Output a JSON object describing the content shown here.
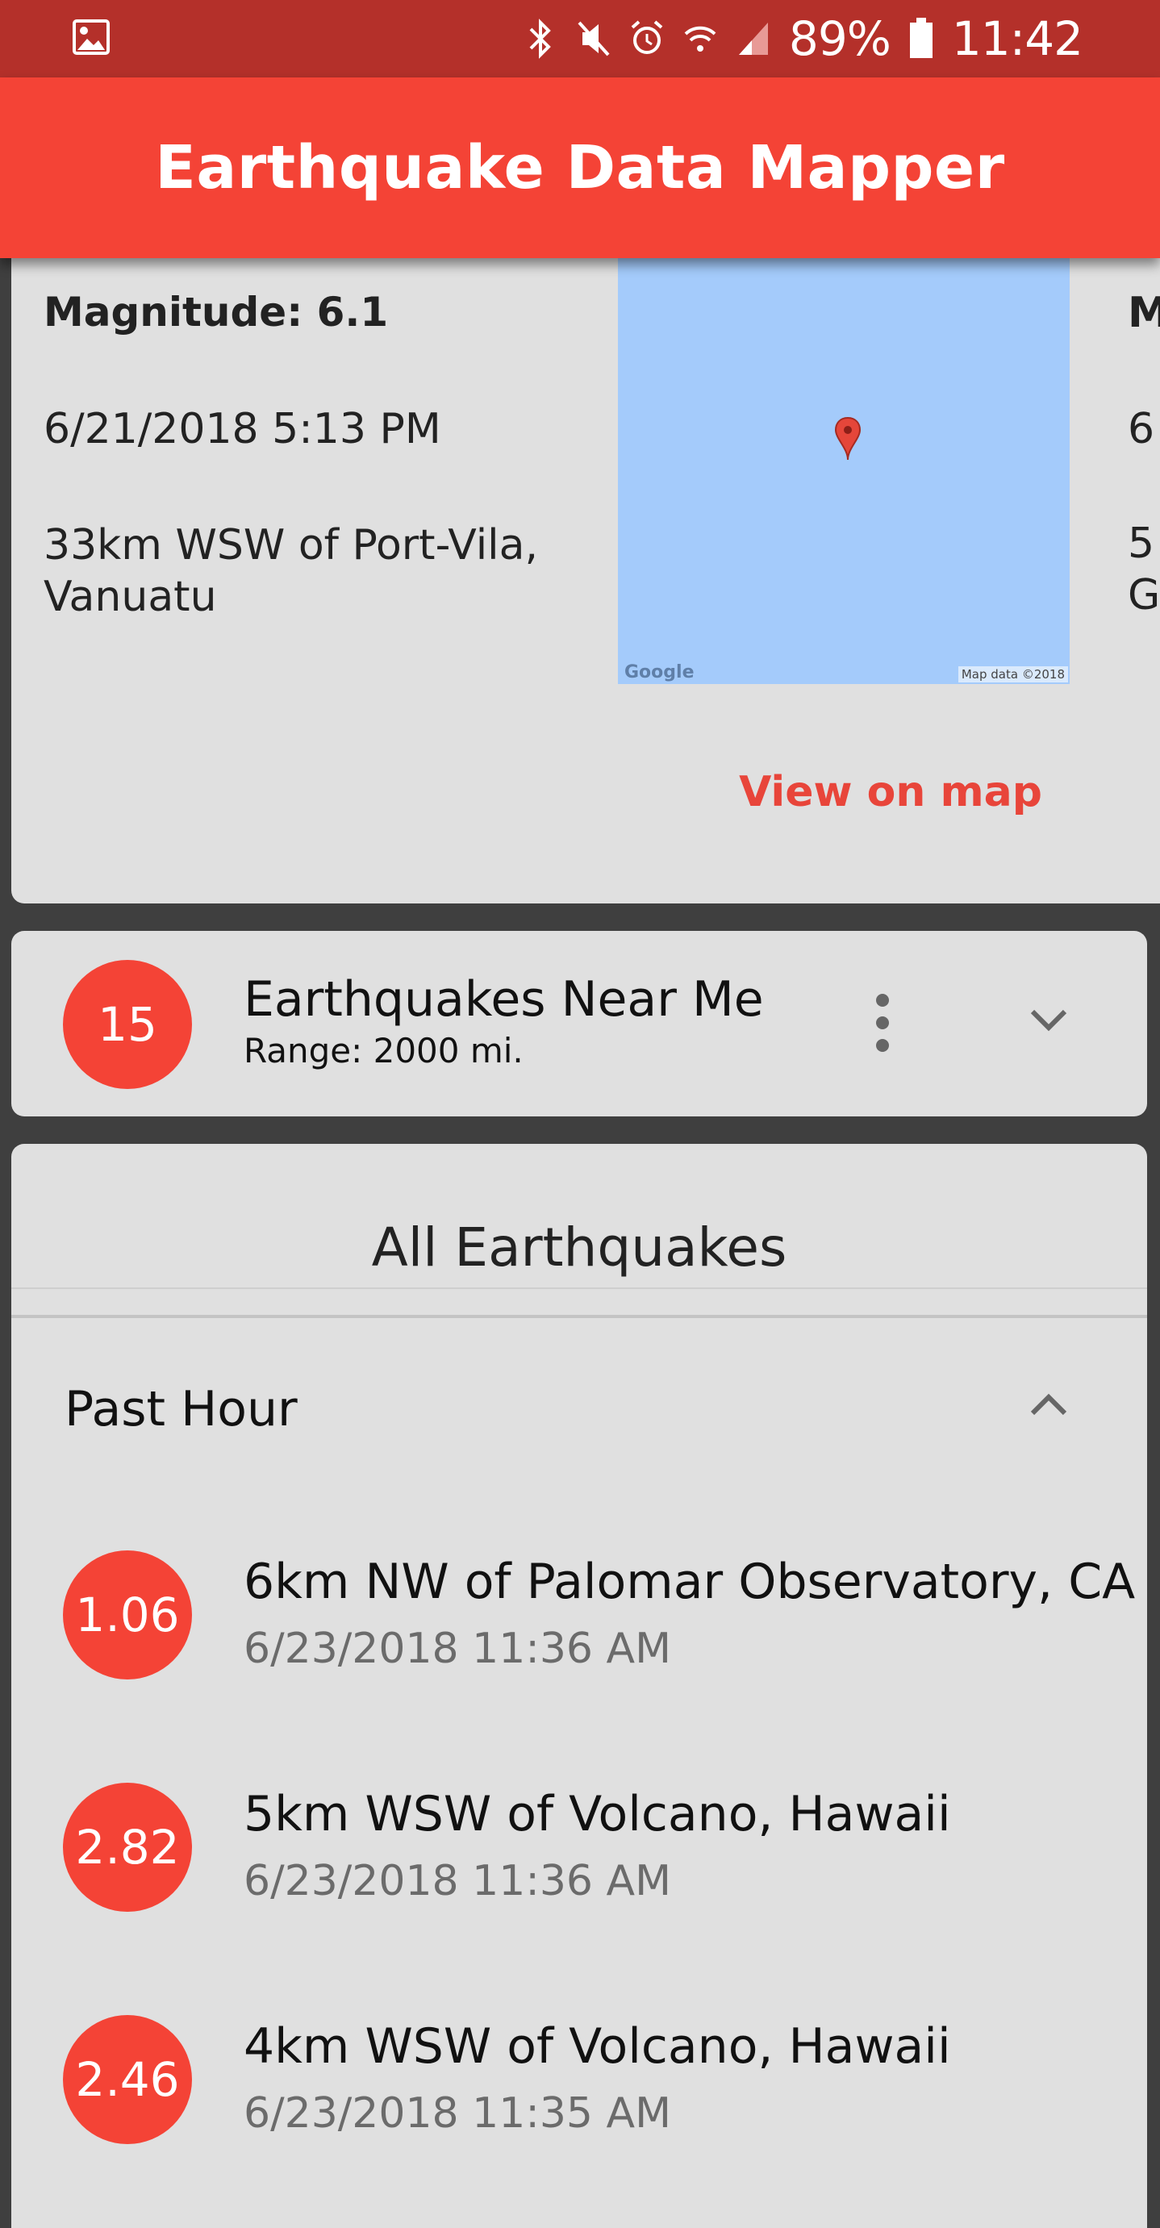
{
  "status_bar": {
    "battery": "89%",
    "time": "11:42",
    "icons": [
      "gallery-icon",
      "bluetooth-icon",
      "mute-icon",
      "alarm-icon",
      "wifi-icon",
      "signal-icon",
      "battery-icon"
    ]
  },
  "app_bar": {
    "title": "Earthquake Data Mapper"
  },
  "feature_card": {
    "magnitude": "Magnitude: 6.1",
    "datetime": "6/21/2018 5:13 PM",
    "location": "33km WSW of Port-Vila, Vanuatu",
    "map_logo": "Google",
    "map_credit": "Map data ©2018",
    "view_button": "View on map"
  },
  "peek_card": {
    "line1": "M",
    "line2": "6",
    "line3": "5",
    "line4": "G"
  },
  "near_me": {
    "count": "15",
    "title": "Earthquakes Near Me",
    "range": "Range: 2000 mi."
  },
  "all_earthquakes": {
    "title": "All Earthquakes",
    "section": "Past Hour",
    "items": [
      {
        "magnitude": "1.06",
        "place": "6km NW of Palomar Observatory, CA",
        "time": "6/23/2018 11:36 AM"
      },
      {
        "magnitude": "2.82",
        "place": "5km WSW of Volcano, Hawaii",
        "time": "6/23/2018 11:36 AM"
      },
      {
        "magnitude": "2.46",
        "place": "4km WSW of Volcano, Hawaii",
        "time": "6/23/2018 11:35 AM"
      }
    ]
  },
  "colors": {
    "accent": "#f44336",
    "status_bar": "#b4302a",
    "card": "#e0e0e0",
    "map_water": "#a4cbfb"
  }
}
